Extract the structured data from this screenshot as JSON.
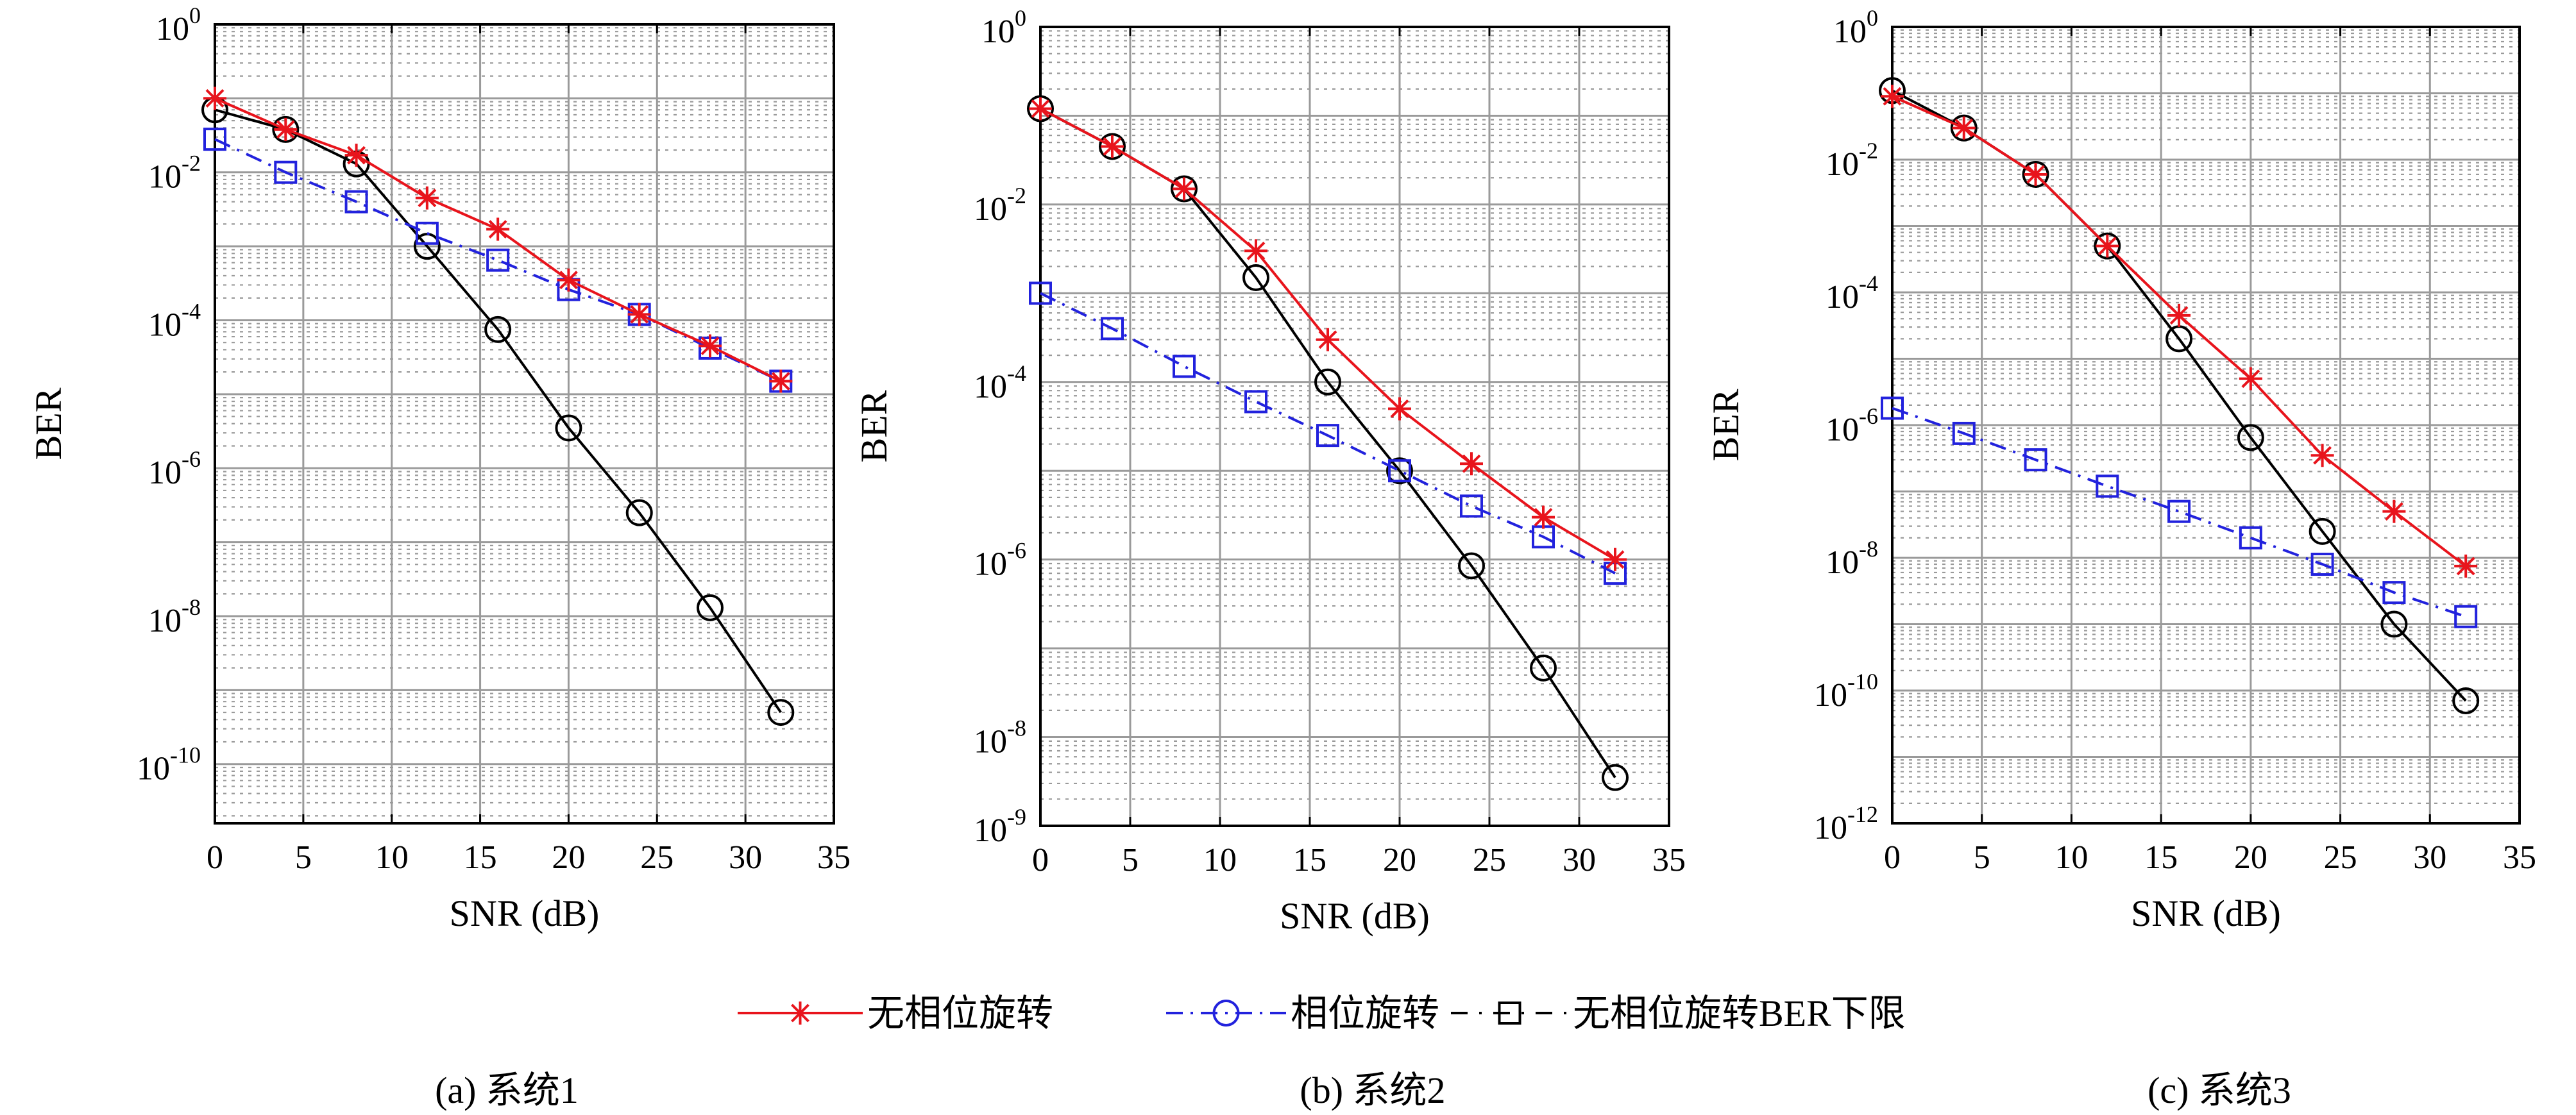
{
  "legend": {
    "placement": "bottom-center",
    "entries": [
      {
        "key": "no_rotation",
        "label": "无相位旋转"
      },
      {
        "key": "rotation",
        "label": "相位旋转"
      },
      {
        "key": "bound",
        "label": "无相位旋转BER下限"
      }
    ]
  },
  "chart_data": [
    {
      "type": "line",
      "caption": "(a) 系统1",
      "xlabel": "SNR (dB)",
      "ylabel": "BER",
      "xlim": [
        0,
        35
      ],
      "ylim_exp": [
        -10.8,
        0
      ],
      "y_scale": "log",
      "grid": true,
      "xticks": [
        0,
        5,
        10,
        15,
        20,
        25,
        30,
        35
      ],
      "yticks_exp": [
        0,
        -2,
        -4,
        -6,
        -8,
        -10
      ],
      "series": [
        {
          "key": "no_rotation",
          "name": "无相位旋转",
          "color": "#e8141c",
          "line": "solid",
          "marker": "asterisk",
          "x": [
            0,
            4,
            8,
            12,
            16,
            20,
            24,
            28,
            32
          ],
          "y": [
            0.1,
            0.038,
            0.017,
            0.0045,
            0.0017,
            0.00035,
            0.00012,
            4.5e-05,
            1.5e-05
          ]
        },
        {
          "key": "rotation",
          "name": "相位旋转",
          "color": "#2222dd",
          "line": "dashdot",
          "marker": "square",
          "x": [
            0,
            4,
            8,
            12,
            16,
            20,
            24,
            28,
            32
          ],
          "y": [
            0.028,
            0.01,
            0.004,
            0.0015,
            0.00065,
            0.00026,
            0.00012,
            4.2e-05,
            1.5e-05
          ]
        },
        {
          "key": "bound",
          "name": "无相位旋转BER下限",
          "color": "#000000",
          "line": "solid",
          "marker": "circle",
          "x": [
            0,
            4,
            8,
            12,
            16,
            20,
            24,
            28,
            32
          ],
          "y": [
            0.07,
            0.038,
            0.013,
            0.001,
            7.5e-05,
            3.5e-06,
            2.5e-07,
            1.3e-08,
            5e-10
          ]
        }
      ]
    },
    {
      "type": "line",
      "caption": "(b) 系统2",
      "xlabel": "SNR (dB)",
      "ylabel": "BER",
      "xlim": [
        0,
        35
      ],
      "ylim_exp": [
        -9,
        0
      ],
      "y_scale": "log",
      "grid": true,
      "xticks": [
        0,
        5,
        10,
        15,
        20,
        25,
        30,
        35
      ],
      "yticks_exp": [
        0,
        -2,
        -4,
        -6,
        -8,
        -9
      ],
      "series": [
        {
          "key": "no_rotation",
          "name": "无相位旋转",
          "color": "#e8141c",
          "line": "solid",
          "marker": "asterisk",
          "x": [
            0,
            4,
            8,
            12,
            16,
            20,
            24,
            28,
            32
          ],
          "y": [
            0.12,
            0.045,
            0.015,
            0.003,
            0.0003,
            5e-05,
            1.2e-05,
            3e-06,
            1e-06
          ]
        },
        {
          "key": "rotation",
          "name": "相位旋转",
          "color": "#2222dd",
          "line": "dashdot",
          "marker": "square",
          "x": [
            0,
            4,
            8,
            12,
            16,
            20,
            24,
            28,
            32
          ],
          "y": [
            0.001,
            0.0004,
            0.00015,
            6e-05,
            2.5e-05,
            1e-05,
            4e-06,
            1.8e-06,
            7e-07
          ]
        },
        {
          "key": "bound",
          "name": "无相位旋转BER下限",
          "color": "#000000",
          "line": "solid",
          "marker": "circle",
          "x": [
            0,
            4,
            8,
            12,
            16,
            20,
            24,
            28,
            32
          ],
          "y": [
            0.12,
            0.045,
            0.015,
            0.0015,
            0.0001,
            1e-05,
            8.5e-07,
            6e-08,
            3.5e-09
          ]
        }
      ]
    },
    {
      "type": "line",
      "caption": "(c) 系统3",
      "xlabel": "SNR (dB)",
      "ylabel": "BER",
      "xlim": [
        0,
        35
      ],
      "ylim_exp": [
        -12,
        0
      ],
      "y_scale": "log",
      "grid": true,
      "xticks": [
        0,
        5,
        10,
        15,
        20,
        25,
        30,
        35
      ],
      "yticks_exp": [
        0,
        -2,
        -4,
        -6,
        -8,
        -10,
        -12
      ],
      "series": [
        {
          "key": "no_rotation",
          "name": "无相位旋转",
          "color": "#e8141c",
          "line": "solid",
          "marker": "asterisk",
          "x": [
            0,
            4,
            8,
            12,
            16,
            20,
            24,
            28,
            32
          ],
          "y": [
            0.09,
            0.03,
            0.006,
            0.0005,
            4.5e-05,
            5e-06,
            3.5e-07,
            5e-08,
            7.5e-09
          ]
        },
        {
          "key": "rotation",
          "name": "相位旋转",
          "color": "#2222dd",
          "line": "dashdot",
          "marker": "square",
          "x": [
            0,
            4,
            8,
            12,
            16,
            20,
            24,
            28,
            32
          ],
          "y": [
            1.8e-06,
            7.5e-07,
            3e-07,
            1.2e-07,
            5e-08,
            2e-08,
            8e-09,
            3e-09,
            1.3e-09
          ]
        },
        {
          "key": "bound",
          "name": "无相位旋转BER下限",
          "color": "#000000",
          "line": "solid",
          "marker": "circle",
          "x": [
            0,
            4,
            8,
            12,
            16,
            20,
            24,
            28,
            32
          ],
          "y": [
            0.11,
            0.03,
            0.006,
            0.0005,
            2e-05,
            6.5e-07,
            2.5e-08,
            1e-09,
            7e-11
          ]
        }
      ]
    }
  ]
}
